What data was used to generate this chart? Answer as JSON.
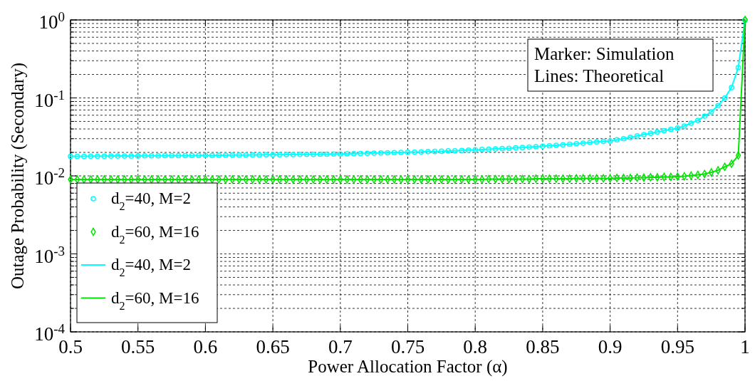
{
  "chart_data": {
    "type": "line",
    "xlabel": "Power Allocation Factor (α)",
    "ylabel": "Outage Probability (Secondary)",
    "log": "y",
    "grid": true,
    "legend": "bottom left",
    "annotations": [
      "Marker: Simulation",
      "Lines: Theoretical"
    ],
    "xlim": [
      0.5,
      1
    ],
    "xticks": [
      0.5,
      0.55,
      0.6,
      0.65,
      0.7,
      0.75,
      0.8,
      0.85,
      0.9,
      0.95,
      1
    ],
    "ylim": [
      0.0001,
      1
    ],
    "yticks": [
      {
        "value": 0.0001,
        "label": "10$^{-4}$"
      },
      {
        "value": 0.001,
        "label": "10$^{-3}$"
      },
      {
        "value": 0.01,
        "label": "10$^{-2}$"
      },
      {
        "value": 0.1,
        "label": "10$^{-1}$"
      },
      {
        "value": 1,
        "label": "10$^{0}$"
      }
    ],
    "x": [
      0.5,
      0.505,
      0.51,
      0.515,
      0.52,
      0.525,
      0.53,
      0.535,
      0.54,
      0.545,
      0.55,
      0.555,
      0.56,
      0.565,
      0.57,
      0.575,
      0.58,
      0.585,
      0.59,
      0.595,
      0.6,
      0.605,
      0.61,
      0.615,
      0.62,
      0.625,
      0.63,
      0.635,
      0.64,
      0.645,
      0.65,
      0.655,
      0.66,
      0.665,
      0.67,
      0.675,
      0.68,
      0.685,
      0.69,
      0.695,
      0.7,
      0.705,
      0.71,
      0.715,
      0.72,
      0.725,
      0.73,
      0.735,
      0.74,
      0.745,
      0.75,
      0.755,
      0.76,
      0.765,
      0.77,
      0.775,
      0.78,
      0.785,
      0.79,
      0.795,
      0.8,
      0.805,
      0.81,
      0.815,
      0.82,
      0.825,
      0.83,
      0.835,
      0.84,
      0.845,
      0.85,
      0.855,
      0.86,
      0.865,
      0.87,
      0.875,
      0.88,
      0.885,
      0.89,
      0.895,
      0.9,
      0.905,
      0.91,
      0.915,
      0.92,
      0.925,
      0.93,
      0.935,
      0.94,
      0.945,
      0.95,
      0.955,
      0.96,
      0.965,
      0.97,
      0.975,
      0.98,
      0.985,
      0.99,
      0.995,
      1
    ],
    "series": [
      {
        "name": "d$_{2}$=40, M=2",
        "type": "scatter",
        "marker": "circle",
        "color": "#00ffff",
        "values": [
          0.0178,
          0.0178,
          0.0178,
          0.0179,
          0.0179,
          0.0179,
          0.018,
          0.018,
          0.018,
          0.018,
          0.018,
          0.0181,
          0.0181,
          0.0181,
          0.0182,
          0.0182,
          0.0182,
          0.0182,
          0.0183,
          0.0183,
          0.0183,
          0.0183,
          0.0184,
          0.0184,
          0.0185,
          0.0185,
          0.0185,
          0.0186,
          0.0186,
          0.0187,
          0.0187,
          0.0187,
          0.0188,
          0.0188,
          0.0189,
          0.0189,
          0.0189,
          0.019,
          0.019,
          0.0191,
          0.0191,
          0.0192,
          0.0193,
          0.0194,
          0.0195,
          0.0196,
          0.0197,
          0.0198,
          0.0199,
          0.02,
          0.0201,
          0.0202,
          0.0203,
          0.0205,
          0.0206,
          0.0207,
          0.0209,
          0.021,
          0.0212,
          0.0214,
          0.0216,
          0.0218,
          0.022,
          0.0222,
          0.0224,
          0.0226,
          0.0229,
          0.0231,
          0.0234,
          0.0237,
          0.024,
          0.0243,
          0.0247,
          0.0251,
          0.0255,
          0.0259,
          0.0263,
          0.0268,
          0.0273,
          0.0277,
          0.028,
          0.029,
          0.03,
          0.0312,
          0.0325,
          0.0338,
          0.0352,
          0.0366,
          0.038,
          0.0395,
          0.041,
          0.0436,
          0.0474,
          0.0515,
          0.0585,
          0.0664,
          0.0796,
          0.1,
          0.136,
          0.245,
          1
        ]
      },
      {
        "name": "d$_{2}$=60, M=16",
        "type": "scatter",
        "marker": "diamond",
        "color": "#00e600",
        "values": [
          0.009,
          0.009,
          0.009,
          0.009,
          0.009,
          0.009,
          0.009,
          0.009,
          0.009,
          0.009,
          0.009,
          0.009,
          0.009,
          0.009,
          0.009,
          0.009,
          0.009,
          0.009,
          0.009,
          0.009,
          0.009,
          0.009,
          0.009,
          0.009,
          0.009,
          0.009,
          0.009,
          0.009,
          0.009,
          0.009,
          0.009,
          0.009,
          0.009,
          0.009,
          0.009,
          0.009,
          0.009,
          0.009,
          0.009,
          0.009,
          0.009,
          0.009,
          0.009,
          0.009,
          0.009,
          0.009,
          0.009,
          0.009,
          0.009,
          0.009,
          0.009,
          0.009,
          0.009,
          0.009,
          0.009,
          0.009,
          0.009,
          0.009,
          0.009,
          0.009,
          0.009,
          0.009,
          0.0091,
          0.0091,
          0.0091,
          0.0091,
          0.0091,
          0.0091,
          0.0091,
          0.0092,
          0.0092,
          0.0092,
          0.0092,
          0.0092,
          0.0092,
          0.0093,
          0.0093,
          0.0093,
          0.0093,
          0.0093,
          0.0093,
          0.0094,
          0.0094,
          0.0094,
          0.0095,
          0.0095,
          0.0096,
          0.0096,
          0.0097,
          0.0097,
          0.0098,
          0.0099,
          0.0101,
          0.0103,
          0.0106,
          0.0111,
          0.0118,
          0.0131,
          0.0143,
          0.0183,
          1
        ]
      },
      {
        "name": "d$_{2}$=40, M=2",
        "type": "line",
        "marker": "none",
        "line_style": "solid",
        "color": "#00ffff",
        "values": [
          0.0178,
          0.0178,
          0.0178,
          0.0179,
          0.0179,
          0.0179,
          0.018,
          0.018,
          0.018,
          0.018,
          0.018,
          0.0181,
          0.0181,
          0.0181,
          0.0182,
          0.0182,
          0.0182,
          0.0182,
          0.0183,
          0.0183,
          0.0183,
          0.0183,
          0.0184,
          0.0184,
          0.0185,
          0.0185,
          0.0185,
          0.0186,
          0.0186,
          0.0187,
          0.0187,
          0.0187,
          0.0188,
          0.0188,
          0.0189,
          0.0189,
          0.0189,
          0.019,
          0.019,
          0.0191,
          0.0191,
          0.0192,
          0.0193,
          0.0194,
          0.0195,
          0.0196,
          0.0197,
          0.0198,
          0.0199,
          0.02,
          0.0201,
          0.0202,
          0.0203,
          0.0205,
          0.0206,
          0.0207,
          0.0209,
          0.021,
          0.0212,
          0.0214,
          0.0216,
          0.0218,
          0.022,
          0.0222,
          0.0224,
          0.0226,
          0.0229,
          0.0231,
          0.0234,
          0.0237,
          0.024,
          0.0243,
          0.0247,
          0.0251,
          0.0255,
          0.0259,
          0.0263,
          0.0268,
          0.0273,
          0.0277,
          0.028,
          0.029,
          0.03,
          0.0312,
          0.0325,
          0.0338,
          0.0352,
          0.0366,
          0.038,
          0.0395,
          0.041,
          0.0436,
          0.0474,
          0.0515,
          0.0585,
          0.0664,
          0.0796,
          0.1,
          0.136,
          0.245,
          1
        ]
      },
      {
        "name": "d$_{2}$=60, M=16",
        "type": "line",
        "marker": "none",
        "line_style": "solid",
        "color": "#00e600",
        "values": [
          0.009,
          0.009,
          0.009,
          0.009,
          0.009,
          0.009,
          0.009,
          0.009,
          0.009,
          0.009,
          0.009,
          0.009,
          0.009,
          0.009,
          0.009,
          0.009,
          0.009,
          0.009,
          0.009,
          0.009,
          0.009,
          0.009,
          0.009,
          0.009,
          0.009,
          0.009,
          0.009,
          0.009,
          0.009,
          0.009,
          0.009,
          0.009,
          0.009,
          0.009,
          0.009,
          0.009,
          0.009,
          0.009,
          0.009,
          0.009,
          0.009,
          0.009,
          0.009,
          0.009,
          0.009,
          0.009,
          0.009,
          0.009,
          0.009,
          0.009,
          0.009,
          0.009,
          0.009,
          0.009,
          0.009,
          0.009,
          0.009,
          0.009,
          0.009,
          0.009,
          0.009,
          0.009,
          0.0091,
          0.0091,
          0.0091,
          0.0091,
          0.0091,
          0.0091,
          0.0091,
          0.0092,
          0.0092,
          0.0092,
          0.0092,
          0.0092,
          0.0092,
          0.0093,
          0.0093,
          0.0093,
          0.0093,
          0.0093,
          0.0093,
          0.0094,
          0.0094,
          0.0094,
          0.0095,
          0.0095,
          0.0096,
          0.0096,
          0.0097,
          0.0097,
          0.0098,
          0.0099,
          0.0101,
          0.0103,
          0.0106,
          0.0111,
          0.0118,
          0.0131,
          0.0143,
          0.0183,
          1
        ]
      }
    ]
  }
}
